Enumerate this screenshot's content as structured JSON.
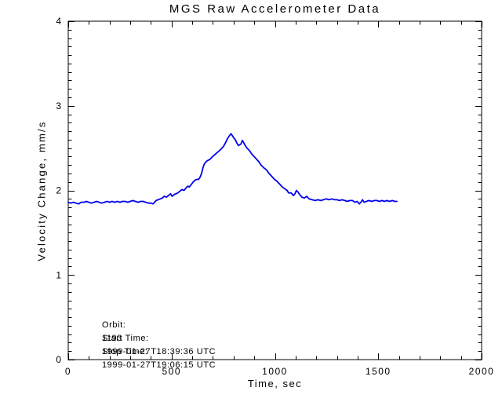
{
  "chart_data": {
    "type": "line",
    "title": "MGS Raw Accelerometer Data",
    "xlabel": "Time, sec",
    "ylabel": "Velocity Change, mm/s",
    "xlim": [
      0,
      2000
    ],
    "ylim": [
      0,
      4
    ],
    "x_major_ticks": [
      0,
      500,
      1000,
      1500,
      2000
    ],
    "x_tick_labels": [
      "0",
      "500",
      "1000",
      "1500",
      "2000"
    ],
    "x_minor_step": 100,
    "y_major_ticks": [
      0,
      1,
      2,
      3,
      4
    ],
    "y_tick_labels": [
      "0",
      "1",
      "2",
      "3",
      "4"
    ],
    "y_minor_step": 0.1,
    "grid": false,
    "legend": null,
    "axis_color": "#000000",
    "background_color": "#ffffff",
    "annotations": [
      {
        "label": "Orbit:",
        "value": "1193"
      },
      {
        "label": "Start Time:",
        "value": "1999-01-27T18:39:36 UTC"
      },
      {
        "label": "Stop Time:",
        "value": "1999-01-27T19:06:15 UTC"
      }
    ],
    "series": [
      {
        "name": "velocity-change",
        "color": "#0000ee",
        "points": [
          [
            0,
            1.86
          ],
          [
            12,
            1.85
          ],
          [
            25,
            1.86
          ],
          [
            38,
            1.85
          ],
          [
            50,
            1.84
          ],
          [
            62,
            1.86
          ],
          [
            75,
            1.86
          ],
          [
            88,
            1.87
          ],
          [
            100,
            1.86
          ],
          [
            112,
            1.85
          ],
          [
            125,
            1.86
          ],
          [
            138,
            1.87
          ],
          [
            150,
            1.86
          ],
          [
            162,
            1.85
          ],
          [
            175,
            1.86
          ],
          [
            188,
            1.87
          ],
          [
            200,
            1.86
          ],
          [
            212,
            1.87
          ],
          [
            225,
            1.86
          ],
          [
            238,
            1.87
          ],
          [
            250,
            1.86
          ],
          [
            262,
            1.87
          ],
          [
            275,
            1.87
          ],
          [
            288,
            1.86
          ],
          [
            300,
            1.87
          ],
          [
            312,
            1.88
          ],
          [
            325,
            1.87
          ],
          [
            338,
            1.86
          ],
          [
            350,
            1.87
          ],
          [
            362,
            1.87
          ],
          [
            375,
            1.86
          ],
          [
            388,
            1.85
          ],
          [
            400,
            1.85
          ],
          [
            410,
            1.84
          ],
          [
            418,
            1.86
          ],
          [
            425,
            1.88
          ],
          [
            435,
            1.89
          ],
          [
            445,
            1.9
          ],
          [
            455,
            1.91
          ],
          [
            465,
            1.93
          ],
          [
            475,
            1.92
          ],
          [
            485,
            1.94
          ],
          [
            495,
            1.96
          ],
          [
            503,
            1.93
          ],
          [
            512,
            1.95
          ],
          [
            521,
            1.96
          ],
          [
            530,
            1.97
          ],
          [
            540,
            1.99
          ],
          [
            550,
            2.01
          ],
          [
            560,
            2.0
          ],
          [
            570,
            2.03
          ],
          [
            578,
            2.05
          ],
          [
            586,
            2.04
          ],
          [
            595,
            2.07
          ],
          [
            605,
            2.1
          ],
          [
            613,
            2.12
          ],
          [
            622,
            2.13
          ],
          [
            630,
            2.13
          ],
          [
            637,
            2.15
          ],
          [
            645,
            2.2
          ],
          [
            652,
            2.27
          ],
          [
            658,
            2.31
          ],
          [
            664,
            2.33
          ],
          [
            672,
            2.35
          ],
          [
            680,
            2.36
          ],
          [
            687,
            2.37
          ],
          [
            694,
            2.39
          ],
          [
            708,
            2.42
          ],
          [
            722,
            2.45
          ],
          [
            736,
            2.48
          ],
          [
            751,
            2.52
          ],
          [
            760,
            2.56
          ],
          [
            770,
            2.61
          ],
          [
            778,
            2.64
          ],
          [
            784,
            2.66
          ],
          [
            788,
            2.67
          ],
          [
            793,
            2.65
          ],
          [
            801,
            2.62
          ],
          [
            808,
            2.6
          ],
          [
            816,
            2.56
          ],
          [
            823,
            2.53
          ],
          [
            830,
            2.54
          ],
          [
            836,
            2.55
          ],
          [
            842,
            2.59
          ],
          [
            848,
            2.57
          ],
          [
            854,
            2.54
          ],
          [
            865,
            2.5
          ],
          [
            877,
            2.47
          ],
          [
            888,
            2.43
          ],
          [
            899,
            2.4
          ],
          [
            911,
            2.37
          ],
          [
            922,
            2.34
          ],
          [
            933,
            2.3
          ],
          [
            945,
            2.27
          ],
          [
            960,
            2.24
          ],
          [
            971,
            2.2
          ],
          [
            987,
            2.16
          ],
          [
            998,
            2.13
          ],
          [
            1009,
            2.11
          ],
          [
            1021,
            2.08
          ],
          [
            1036,
            2.04
          ],
          [
            1047,
            2.02
          ],
          [
            1059,
            2.0
          ],
          [
            1066,
            1.97
          ],
          [
            1078,
            1.97
          ],
          [
            1089,
            1.94
          ],
          [
            1097,
            1.96
          ],
          [
            1104,
            2.0
          ],
          [
            1112,
            1.98
          ],
          [
            1120,
            1.95
          ],
          [
            1131,
            1.92
          ],
          [
            1142,
            1.91
          ],
          [
            1154,
            1.93
          ],
          [
            1165,
            1.9
          ],
          [
            1180,
            1.89
          ],
          [
            1195,
            1.88
          ],
          [
            1208,
            1.89
          ],
          [
            1222,
            1.88
          ],
          [
            1235,
            1.89
          ],
          [
            1248,
            1.9
          ],
          [
            1262,
            1.89
          ],
          [
            1275,
            1.9
          ],
          [
            1288,
            1.89
          ],
          [
            1300,
            1.89
          ],
          [
            1313,
            1.88
          ],
          [
            1325,
            1.89
          ],
          [
            1338,
            1.88
          ],
          [
            1350,
            1.87
          ],
          [
            1363,
            1.88
          ],
          [
            1375,
            1.88
          ],
          [
            1388,
            1.86
          ],
          [
            1398,
            1.87
          ],
          [
            1408,
            1.84
          ],
          [
            1416,
            1.86
          ],
          [
            1424,
            1.89
          ],
          [
            1432,
            1.86
          ],
          [
            1442,
            1.87
          ],
          [
            1455,
            1.88
          ],
          [
            1468,
            1.87
          ],
          [
            1480,
            1.88
          ],
          [
            1493,
            1.88
          ],
          [
            1505,
            1.87
          ],
          [
            1518,
            1.88
          ],
          [
            1530,
            1.87
          ],
          [
            1542,
            1.88
          ],
          [
            1555,
            1.87
          ],
          [
            1568,
            1.88
          ],
          [
            1580,
            1.87
          ],
          [
            1590,
            1.87
          ]
        ]
      }
    ]
  }
}
